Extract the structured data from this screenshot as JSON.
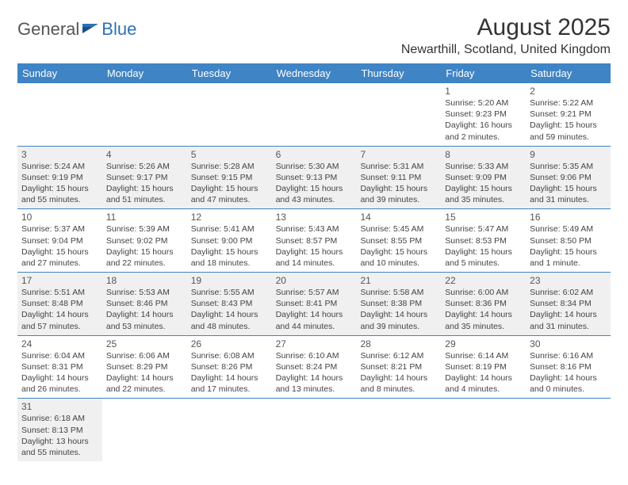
{
  "logo": {
    "general": "General",
    "blue": "Blue"
  },
  "title": "August 2025",
  "location": "Newarthill, Scotland, United Kingdom",
  "header_color": "#3f84c4",
  "alt_row_color": "#f0f0f0",
  "divider_color": "#3f84c4",
  "day_names": [
    "Sunday",
    "Monday",
    "Tuesday",
    "Wednesday",
    "Thursday",
    "Friday",
    "Saturday"
  ],
  "weeks": [
    {
      "alt": false,
      "cells": [
        null,
        null,
        null,
        null,
        null,
        {
          "n": "1",
          "sr": "Sunrise: 5:20 AM",
          "ss": "Sunset: 9:23 PM",
          "d1": "Daylight: 16 hours",
          "d2": "and 2 minutes."
        },
        {
          "n": "2",
          "sr": "Sunrise: 5:22 AM",
          "ss": "Sunset: 9:21 PM",
          "d1": "Daylight: 15 hours",
          "d2": "and 59 minutes."
        }
      ]
    },
    {
      "alt": true,
      "cells": [
        {
          "n": "3",
          "sr": "Sunrise: 5:24 AM",
          "ss": "Sunset: 9:19 PM",
          "d1": "Daylight: 15 hours",
          "d2": "and 55 minutes."
        },
        {
          "n": "4",
          "sr": "Sunrise: 5:26 AM",
          "ss": "Sunset: 9:17 PM",
          "d1": "Daylight: 15 hours",
          "d2": "and 51 minutes."
        },
        {
          "n": "5",
          "sr": "Sunrise: 5:28 AM",
          "ss": "Sunset: 9:15 PM",
          "d1": "Daylight: 15 hours",
          "d2": "and 47 minutes."
        },
        {
          "n": "6",
          "sr": "Sunrise: 5:30 AM",
          "ss": "Sunset: 9:13 PM",
          "d1": "Daylight: 15 hours",
          "d2": "and 43 minutes."
        },
        {
          "n": "7",
          "sr": "Sunrise: 5:31 AM",
          "ss": "Sunset: 9:11 PM",
          "d1": "Daylight: 15 hours",
          "d2": "and 39 minutes."
        },
        {
          "n": "8",
          "sr": "Sunrise: 5:33 AM",
          "ss": "Sunset: 9:09 PM",
          "d1": "Daylight: 15 hours",
          "d2": "and 35 minutes."
        },
        {
          "n": "9",
          "sr": "Sunrise: 5:35 AM",
          "ss": "Sunset: 9:06 PM",
          "d1": "Daylight: 15 hours",
          "d2": "and 31 minutes."
        }
      ]
    },
    {
      "alt": false,
      "cells": [
        {
          "n": "10",
          "sr": "Sunrise: 5:37 AM",
          "ss": "Sunset: 9:04 PM",
          "d1": "Daylight: 15 hours",
          "d2": "and 27 minutes."
        },
        {
          "n": "11",
          "sr": "Sunrise: 5:39 AM",
          "ss": "Sunset: 9:02 PM",
          "d1": "Daylight: 15 hours",
          "d2": "and 22 minutes."
        },
        {
          "n": "12",
          "sr": "Sunrise: 5:41 AM",
          "ss": "Sunset: 9:00 PM",
          "d1": "Daylight: 15 hours",
          "d2": "and 18 minutes."
        },
        {
          "n": "13",
          "sr": "Sunrise: 5:43 AM",
          "ss": "Sunset: 8:57 PM",
          "d1": "Daylight: 15 hours",
          "d2": "and 14 minutes."
        },
        {
          "n": "14",
          "sr": "Sunrise: 5:45 AM",
          "ss": "Sunset: 8:55 PM",
          "d1": "Daylight: 15 hours",
          "d2": "and 10 minutes."
        },
        {
          "n": "15",
          "sr": "Sunrise: 5:47 AM",
          "ss": "Sunset: 8:53 PM",
          "d1": "Daylight: 15 hours",
          "d2": "and 5 minutes."
        },
        {
          "n": "16",
          "sr": "Sunrise: 5:49 AM",
          "ss": "Sunset: 8:50 PM",
          "d1": "Daylight: 15 hours",
          "d2": "and 1 minute."
        }
      ]
    },
    {
      "alt": true,
      "cells": [
        {
          "n": "17",
          "sr": "Sunrise: 5:51 AM",
          "ss": "Sunset: 8:48 PM",
          "d1": "Daylight: 14 hours",
          "d2": "and 57 minutes."
        },
        {
          "n": "18",
          "sr": "Sunrise: 5:53 AM",
          "ss": "Sunset: 8:46 PM",
          "d1": "Daylight: 14 hours",
          "d2": "and 53 minutes."
        },
        {
          "n": "19",
          "sr": "Sunrise: 5:55 AM",
          "ss": "Sunset: 8:43 PM",
          "d1": "Daylight: 14 hours",
          "d2": "and 48 minutes."
        },
        {
          "n": "20",
          "sr": "Sunrise: 5:57 AM",
          "ss": "Sunset: 8:41 PM",
          "d1": "Daylight: 14 hours",
          "d2": "and 44 minutes."
        },
        {
          "n": "21",
          "sr": "Sunrise: 5:58 AM",
          "ss": "Sunset: 8:38 PM",
          "d1": "Daylight: 14 hours",
          "d2": "and 39 minutes."
        },
        {
          "n": "22",
          "sr": "Sunrise: 6:00 AM",
          "ss": "Sunset: 8:36 PM",
          "d1": "Daylight: 14 hours",
          "d2": "and 35 minutes."
        },
        {
          "n": "23",
          "sr": "Sunrise: 6:02 AM",
          "ss": "Sunset: 8:34 PM",
          "d1": "Daylight: 14 hours",
          "d2": "and 31 minutes."
        }
      ]
    },
    {
      "alt": false,
      "cells": [
        {
          "n": "24",
          "sr": "Sunrise: 6:04 AM",
          "ss": "Sunset: 8:31 PM",
          "d1": "Daylight: 14 hours",
          "d2": "and 26 minutes."
        },
        {
          "n": "25",
          "sr": "Sunrise: 6:06 AM",
          "ss": "Sunset: 8:29 PM",
          "d1": "Daylight: 14 hours",
          "d2": "and 22 minutes."
        },
        {
          "n": "26",
          "sr": "Sunrise: 6:08 AM",
          "ss": "Sunset: 8:26 PM",
          "d1": "Daylight: 14 hours",
          "d2": "and 17 minutes."
        },
        {
          "n": "27",
          "sr": "Sunrise: 6:10 AM",
          "ss": "Sunset: 8:24 PM",
          "d1": "Daylight: 14 hours",
          "d2": "and 13 minutes."
        },
        {
          "n": "28",
          "sr": "Sunrise: 6:12 AM",
          "ss": "Sunset: 8:21 PM",
          "d1": "Daylight: 14 hours",
          "d2": "and 8 minutes."
        },
        {
          "n": "29",
          "sr": "Sunrise: 6:14 AM",
          "ss": "Sunset: 8:19 PM",
          "d1": "Daylight: 14 hours",
          "d2": "and 4 minutes."
        },
        {
          "n": "30",
          "sr": "Sunrise: 6:16 AM",
          "ss": "Sunset: 8:16 PM",
          "d1": "Daylight: 14 hours",
          "d2": "and 0 minutes."
        }
      ]
    },
    {
      "alt": true,
      "last": true,
      "cells": [
        {
          "n": "31",
          "sr": "Sunrise: 6:18 AM",
          "ss": "Sunset: 8:13 PM",
          "d1": "Daylight: 13 hours",
          "d2": "and 55 minutes."
        },
        null,
        null,
        null,
        null,
        null,
        null
      ]
    }
  ]
}
